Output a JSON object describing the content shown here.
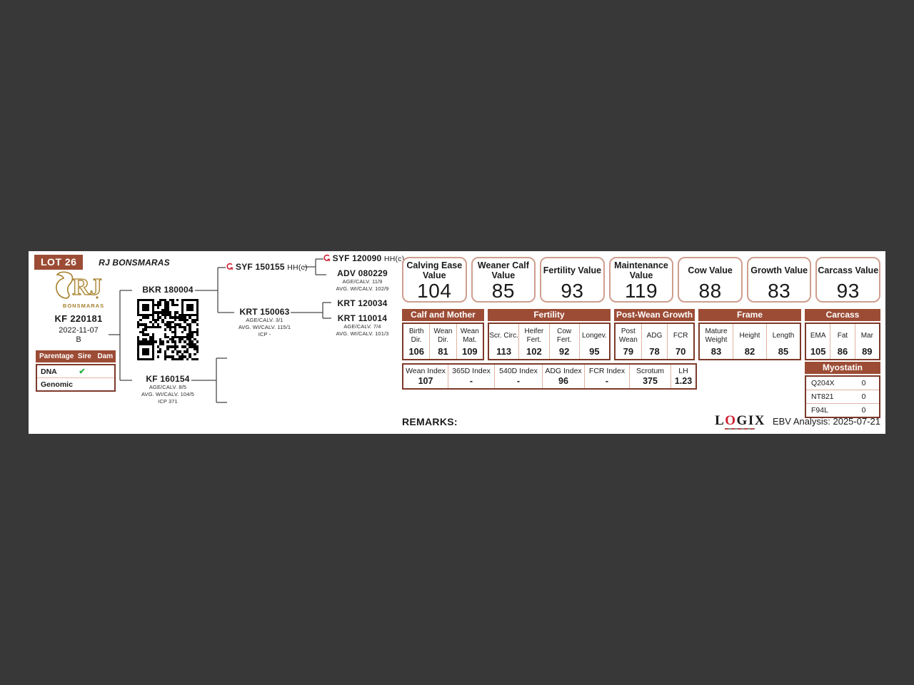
{
  "header": {
    "lot": "LOT 26",
    "stud": "RJ BONSMARAS"
  },
  "logo": {
    "monogram": "RJ",
    "name": "BONSMARAS"
  },
  "animal": {
    "id": "KF 220181",
    "birth_date": "2022-11-07",
    "status": "B"
  },
  "parentage": {
    "title": "Parentage",
    "sire_col": "Sire",
    "dam_col": "Dam",
    "rows": [
      {
        "label": "DNA",
        "sire": "✔",
        "dam": ""
      },
      {
        "label": "Genomic",
        "sire": "",
        "dam": ""
      }
    ]
  },
  "pedigree": {
    "sire": {
      "name": "BKR 180004"
    },
    "dam": {
      "name": "KF 160154",
      "details": [
        "AGE/CALV. 8/5",
        "AVG. WI/CALV. 104/5",
        "ICP 371"
      ]
    },
    "sire_sire": {
      "name": "SYF 150155",
      "suffix": "HH(c)"
    },
    "sire_dam": {
      "name": "KRT 150063",
      "details": [
        "AGE/CALV. 3/1",
        "AVG. WI/CALV. 115/1",
        "ICP -"
      ]
    },
    "sire_sire_sire": {
      "name": "SYF 120090",
      "suffix": "HH(c)"
    },
    "sire_sire_dam": {
      "name": "ADV 080229",
      "details": [
        "AGE/CALV. 11/9",
        "AVG. WI/CALV. 102/9"
      ]
    },
    "sire_dam_sire": {
      "name": "KRT 120034"
    },
    "sire_dam_dam": {
      "name": "KRT 110014",
      "details": [
        "AGE/CALV. 7/4",
        "AVG. WI/CALV. 101/3"
      ]
    }
  },
  "values": [
    {
      "label": "Calving Ease Value",
      "value": "104"
    },
    {
      "label": "Weaner Calf Value",
      "value": "85"
    },
    {
      "label": "Fertility Value",
      "value": "93"
    },
    {
      "label": "Maintenance Value",
      "value": "119"
    },
    {
      "label": "Cow Value",
      "value": "88"
    },
    {
      "label": "Growth Value",
      "value": "83"
    },
    {
      "label": "Carcass Value",
      "value": "93"
    }
  ],
  "groups": [
    {
      "title": "Calf and Mother",
      "cols": [
        {
          "label": "Birth Dir.",
          "value": "106"
        },
        {
          "label": "Wean Dir.",
          "value": "81"
        },
        {
          "label": "Wean Mat.",
          "value": "109"
        }
      ]
    },
    {
      "title": "Fertility",
      "cols": [
        {
          "label": "Scr. Circ.",
          "value": "113"
        },
        {
          "label": "Heifer Fert.",
          "value": "102"
        },
        {
          "label": "Cow Fert.",
          "value": "92"
        },
        {
          "label": "Longev.",
          "value": "95"
        }
      ]
    },
    {
      "title": "Post-Wean Growth",
      "cols": [
        {
          "label": "Post Wean",
          "value": "79"
        },
        {
          "label": "ADG",
          "value": "78"
        },
        {
          "label": "FCR",
          "value": "70"
        }
      ]
    },
    {
      "title": "Frame",
      "cols": [
        {
          "label": "Mature Weight",
          "value": "83"
        },
        {
          "label": "Height",
          "value": "82"
        },
        {
          "label": "Length",
          "value": "85"
        }
      ]
    },
    {
      "title": "Carcass",
      "cols": [
        {
          "label": "EMA",
          "value": "105"
        },
        {
          "label": "Fat",
          "value": "86"
        },
        {
          "label": "Mar",
          "value": "89"
        }
      ]
    }
  ],
  "indices": [
    {
      "label": "Wean Index",
      "value": "107"
    },
    {
      "label": "365D Index",
      "value": "-"
    },
    {
      "label": "540D Index",
      "value": "-"
    },
    {
      "label": "ADG Index",
      "value": "96"
    },
    {
      "label": "FCR Index",
      "value": "-"
    },
    {
      "label": "Scrotum",
      "value": "375"
    },
    {
      "label": "LH",
      "value": "1.23"
    }
  ],
  "myostatin": {
    "title": "Myostatin",
    "rows": [
      {
        "gene": "Q204X",
        "value": "0"
      },
      {
        "gene": "NT821",
        "value": "0"
      },
      {
        "gene": "F94L",
        "value": "0"
      }
    ]
  },
  "footer": {
    "remarks": "REMARKS:",
    "logix_l": "L",
    "logix_o": "O",
    "logix_rest": "GIX",
    "ebv_analysis": "EBV Analysis: 2025-07-21"
  },
  "colors": {
    "header_brown": "#9c4c35",
    "table_border_brown": "#7d392a",
    "divider_salmon": "#e0b2a2",
    "value_box_border": "#cf9e8e",
    "green_check": "#1faf3c",
    "logo_gold": "#a5802d",
    "logix_red": "#cf2030",
    "background_dark": "#383838"
  }
}
